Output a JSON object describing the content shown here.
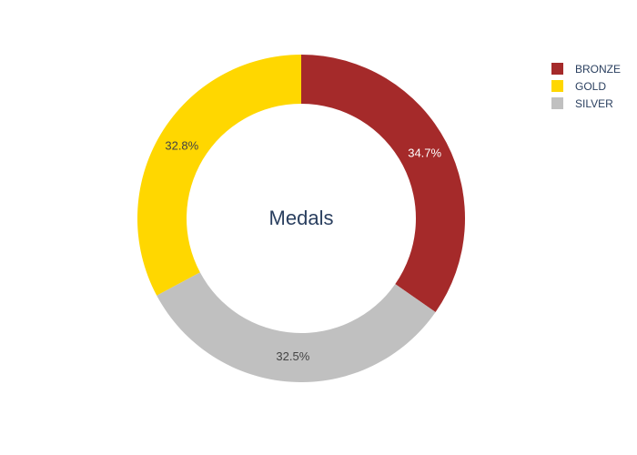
{
  "chart_data": {
    "type": "pie",
    "hole": true,
    "center_text": "Medals",
    "labels": [
      "BRONZE",
      "SILVER",
      "GOLD"
    ],
    "values": [
      34.7,
      32.5,
      32.8
    ],
    "percent_labels": [
      "34.7%",
      "32.5%",
      "32.8%"
    ],
    "colors": [
      "#a52a2a",
      "#c0c0c0",
      "#ffd700"
    ],
    "label_colors": [
      "#ffffff",
      "#444444",
      "#444444"
    ],
    "legend": {
      "placement": "top-right",
      "entries": [
        {
          "label": "BRONZE",
          "color": "#a52a2a"
        },
        {
          "label": "GOLD",
          "color": "#ffd700"
        },
        {
          "label": "SILVER",
          "color": "#c0c0c0"
        }
      ]
    }
  }
}
